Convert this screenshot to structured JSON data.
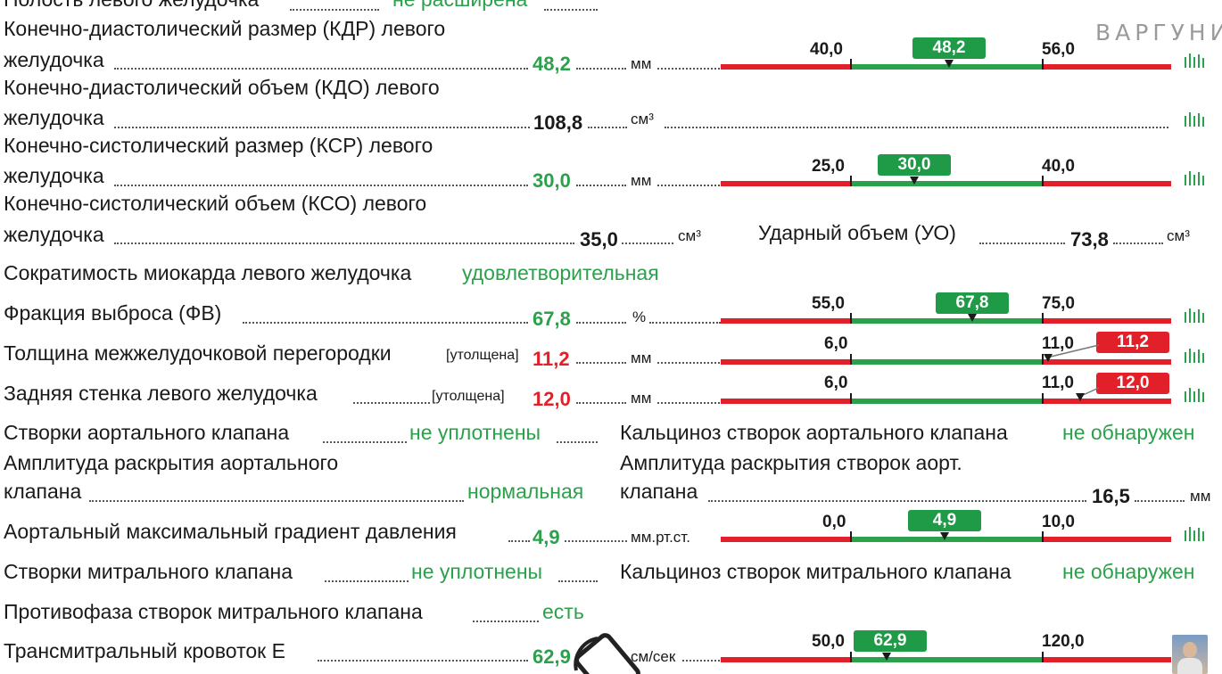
{
  "watermark": "ВАРГУНИН",
  "top_partial": {
    "label": "Полость левого желудочка",
    "value": "не расширена"
  },
  "rows": {
    "kdr": {
      "label1": "Конечно-диастолический размер (КДР) левого",
      "label2": "желудочка",
      "value": "48,2",
      "unit": "мм",
      "scale": {
        "low": "40,0",
        "high": "56,0",
        "badge": "48,2"
      }
    },
    "kdo": {
      "label1": "Конечно-диастолический объем (КДО) левого",
      "label2": "желудочка",
      "value": "108,8",
      "unit": "см³"
    },
    "ksr": {
      "label1": "Конечно-систолический размер (КСР) левого",
      "label2": "желудочка",
      "value": "30,0",
      "unit": "мм",
      "scale": {
        "low": "25,0",
        "high": "40,0",
        "badge": "30,0"
      }
    },
    "kso": {
      "label1": "Конечно-систолический объем (КСО) левого",
      "label2": "желудочка",
      "value": "35,0",
      "unit": "см³"
    },
    "uo": {
      "label": "Ударный объем (УО)",
      "value": "73,8",
      "unit": "см³"
    },
    "contract": {
      "label": "Сократимость миокарда левого желудочка",
      "value": "удовлетворительная"
    },
    "fv": {
      "label": "Фракция выброса (ФВ)",
      "value": "67,8",
      "unit": "%",
      "scale": {
        "low": "55,0",
        "high": "75,0",
        "badge": "67,8"
      }
    },
    "mzp": {
      "label": "Толщина межжелудочковой перегородки",
      "note": "[утолщена]",
      "value": "11,2",
      "unit": "мм",
      "scale": {
        "low": "6,0",
        "high": "11,0",
        "badge": "11,2"
      }
    },
    "zs": {
      "label": "Задняя стенка левого желудочка",
      "note": "[утолщена]",
      "value": "12,0",
      "unit": "мм",
      "scale": {
        "low": "6,0",
        "high": "11,0",
        "badge": "12,0"
      }
    },
    "aov": {
      "label": "Створки аортального клапана",
      "value": "не уплотнены"
    },
    "aov_ca": {
      "label": "Кальциноз створок аортального клапана",
      "value": "не обнаружен"
    },
    "aoamp": {
      "label1": "Амплитуда раскрытия аортального",
      "label2": "клапана",
      "value": "нормальная"
    },
    "aoamp2": {
      "label1": "Амплитуда раскрытия створок аорт.",
      "label2": "клапана",
      "value": "16,5",
      "unit": "мм"
    },
    "grad": {
      "label": "Аортальный максимальный градиент давления",
      "value": "4,9",
      "unit": "мм.рт.ст.",
      "scale": {
        "low": "0,0",
        "high": "10,0",
        "badge": "4,9"
      }
    },
    "mv": {
      "label": "Створки митрального клапана",
      "value": "не уплотнены"
    },
    "mv_ca": {
      "label": "Кальциноз створок митрального клапана",
      "value": "не обнаружен"
    },
    "anti": {
      "label": "Противофаза створок митрального клапана",
      "value": "есть"
    },
    "tme": {
      "label": "Трансмитральный кровоток Е",
      "value": "62,9",
      "unit": "см/сек",
      "scale": {
        "low": "50,0",
        "high": "120,0",
        "badge": "62,9"
      }
    }
  },
  "colors": {
    "normal": "#2aa14a",
    "abnormal": "#e2202a",
    "bar_red": "#e2202a",
    "bar_green": "#2aa14a"
  }
}
